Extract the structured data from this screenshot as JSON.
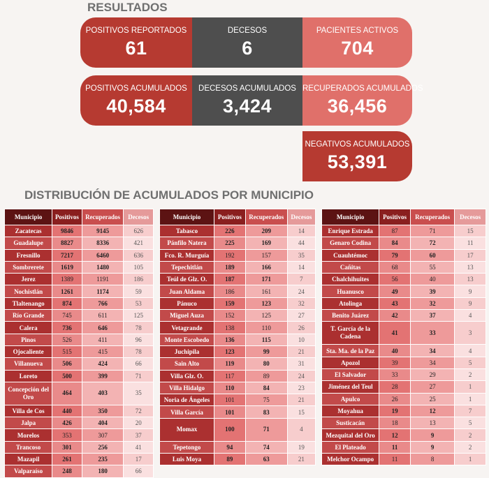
{
  "section_results": "RESULTADOS",
  "section_distribution": "DISTRIBUCIÓN DE ACUMULADOS POR MUNICIPIO",
  "cards": {
    "positivos_reportados": {
      "label": "POSITIVOS REPORTADOS",
      "value": "61"
    },
    "decesos": {
      "label": "DECESOS",
      "value": "6"
    },
    "pacientes_activos": {
      "label": "PACIENTES ACTIVOS",
      "value": "704"
    },
    "positivos_acumulados": {
      "label": "POSITIVOS ACUMULADOS",
      "value": "40,584"
    },
    "decesos_acumulados": {
      "label": "DECESOS ACUMULADOS",
      "value": "3,424"
    },
    "recuperados_acumulados": {
      "label": "RECUPERADOS ACUMULADOS",
      "value": "36,456"
    },
    "negativos_acumulados": {
      "label": "NEGATIVOS ACUMULADOS",
      "value": "53,391"
    }
  },
  "table_headers": {
    "municipio": "Municipio",
    "positivos": "Positivos",
    "recuperados": "Recuperados",
    "decesos": "Decesos"
  },
  "tables": [
    {
      "rows": [
        {
          "m": "Zacatecas",
          "p": "9846",
          "r": "9145",
          "d": "626",
          "b": true
        },
        {
          "m": "Guadalupe",
          "p": "8827",
          "r": "8336",
          "d": "421",
          "b": true
        },
        {
          "m": "Fresnillo",
          "p": "7217",
          "r": "6460",
          "d": "636",
          "b": true
        },
        {
          "m": "Sombrerete",
          "p": "1619",
          "r": "1480",
          "d": "105",
          "b": true
        },
        {
          "m": "Jerez",
          "p": "1389",
          "r": "1191",
          "d": "186",
          "b": false
        },
        {
          "m": "Nochistlán",
          "p": "1261",
          "r": "1174",
          "d": "59",
          "b": true
        },
        {
          "m": "Tlaltenango",
          "p": "874",
          "r": "766",
          "d": "53",
          "b": true
        },
        {
          "m": "Río Grande",
          "p": "745",
          "r": "611",
          "d": "125",
          "b": false
        },
        {
          "m": "Calera",
          "p": "736",
          "r": "646",
          "d": "78",
          "b": true
        },
        {
          "m": "Pinos",
          "p": "526",
          "r": "411",
          "d": "96",
          "b": false
        },
        {
          "m": "Ojocaliente",
          "p": "515",
          "r": "415",
          "d": "78",
          "b": false
        },
        {
          "m": "Villanueva",
          "p": "506",
          "r": "424",
          "d": "66",
          "b": true
        },
        {
          "m": "Loreto",
          "p": "500",
          "r": "399",
          "d": "71",
          "b": true
        },
        {
          "m": "Concepción del Oro",
          "p": "464",
          "r": "403",
          "d": "35",
          "b": true,
          "tall": true
        },
        {
          "m": "Villa de Cos",
          "p": "440",
          "r": "350",
          "d": "72",
          "b": true
        },
        {
          "m": "Jalpa",
          "p": "426",
          "r": "404",
          "d": "20",
          "b": true
        },
        {
          "m": "Morelos",
          "p": "353",
          "r": "307",
          "d": "37",
          "b": false
        },
        {
          "m": "Trancoso",
          "p": "301",
          "r": "256",
          "d": "41",
          "b": true
        },
        {
          "m": "Mazapil",
          "p": "261",
          "r": "235",
          "d": "17",
          "b": true
        },
        {
          "m": "Valparaíso",
          "p": "248",
          "r": "180",
          "d": "66",
          "b": true
        }
      ]
    },
    {
      "rows": [
        {
          "m": "Tabasco",
          "p": "226",
          "r": "209",
          "d": "14",
          "b": true
        },
        {
          "m": "Pánfilo Natera",
          "p": "225",
          "r": "169",
          "d": "44",
          "b": true
        },
        {
          "m": "Fco. R. Murguía",
          "p": "192",
          "r": "157",
          "d": "35",
          "b": false
        },
        {
          "m": "Tepechitlán",
          "p": "189",
          "r": "166",
          "d": "14",
          "b": true
        },
        {
          "m": "Teúl de Glz. O.",
          "p": "187",
          "r": "171",
          "d": "7",
          "b": true
        },
        {
          "m": "Juan Aldama",
          "p": "186",
          "r": "161",
          "d": "24",
          "b": false
        },
        {
          "m": "Pánuco",
          "p": "159",
          "r": "123",
          "d": "32",
          "b": true
        },
        {
          "m": "Miguel Auza",
          "p": "152",
          "r": "125",
          "d": "27",
          "b": false
        },
        {
          "m": "Vetagrande",
          "p": "138",
          "r": "110",
          "d": "26",
          "b": false
        },
        {
          "m": "Monte Escobedo",
          "p": "136",
          "r": "115",
          "d": "10",
          "b": true
        },
        {
          "m": "Juchipila",
          "p": "123",
          "r": "99",
          "d": "21",
          "b": true
        },
        {
          "m": "Sain Alto",
          "p": "119",
          "r": "80",
          "d": "31",
          "b": true
        },
        {
          "m": "Villa Glz. O.",
          "p": "117",
          "r": "89",
          "d": "24",
          "b": false
        },
        {
          "m": "Villa Hidalgo",
          "p": "110",
          "r": "84",
          "d": "23",
          "b": true
        },
        {
          "m": "Noria de Ángeles",
          "p": "101",
          "r": "75",
          "d": "21",
          "b": false
        },
        {
          "m": "Villa García",
          "p": "101",
          "r": "83",
          "d": "15",
          "b": true
        },
        {
          "m": "Momax",
          "p": "100",
          "r": "71",
          "d": "4",
          "b": true,
          "tall": true
        },
        {
          "m": "Tepetongo",
          "p": "94",
          "r": "74",
          "d": "19",
          "b": true
        },
        {
          "m": "Luis Moya",
          "p": "89",
          "r": "63",
          "d": "21",
          "b": true
        }
      ]
    },
    {
      "rows": [
        {
          "m": "Enrique Estrada",
          "p": "87",
          "r": "71",
          "d": "15",
          "b": false
        },
        {
          "m": "Genaro Codina",
          "p": "84",
          "r": "72",
          "d": "11",
          "b": true
        },
        {
          "m": "Cuauhtémoc",
          "p": "79",
          "r": "60",
          "d": "17",
          "b": true
        },
        {
          "m": "Cañitas",
          "p": "68",
          "r": "55",
          "d": "13",
          "b": false
        },
        {
          "m": "Chalchihuites",
          "p": "56",
          "r": "40",
          "d": "13",
          "b": false
        },
        {
          "m": "Huanusco",
          "p": "49",
          "r": "39",
          "d": "9",
          "b": true
        },
        {
          "m": "Atolinga",
          "p": "43",
          "r": "32",
          "d": "9",
          "b": true
        },
        {
          "m": "Benito Juárez",
          "p": "42",
          "r": "37",
          "d": "4",
          "b": true
        },
        {
          "m": "T. García de la Cadena",
          "p": "41",
          "r": "33",
          "d": "3",
          "b": true,
          "tall": true
        },
        {
          "m": "Sta. Ma. de la Paz",
          "p": "40",
          "r": "34",
          "d": "4",
          "b": true
        },
        {
          "m": "Apozol",
          "p": "39",
          "r": "34",
          "d": "5",
          "b": false
        },
        {
          "m": "El Salvador",
          "p": "33",
          "r": "29",
          "d": "2",
          "b": false
        },
        {
          "m": "Jiménez del Teul",
          "p": "28",
          "r": "27",
          "d": "1",
          "b": false
        },
        {
          "m": "Apulco",
          "p": "26",
          "r": "25",
          "d": "1",
          "b": false
        },
        {
          "m": "Moyahua",
          "p": "19",
          "r": "12",
          "d": "7",
          "b": true
        },
        {
          "m": "Susticacán",
          "p": "18",
          "r": "13",
          "d": "5",
          "b": false
        },
        {
          "m": "Mezquital del Oro",
          "p": "12",
          "r": "9",
          "d": "2",
          "b": true
        },
        {
          "m": "El Plateado",
          "p": "11",
          "r": "9",
          "d": "2",
          "b": true
        },
        {
          "m": "Melchor Ocampo",
          "p": "11",
          "r": "8",
          "d": "1",
          "b": false
        }
      ]
    }
  ]
}
